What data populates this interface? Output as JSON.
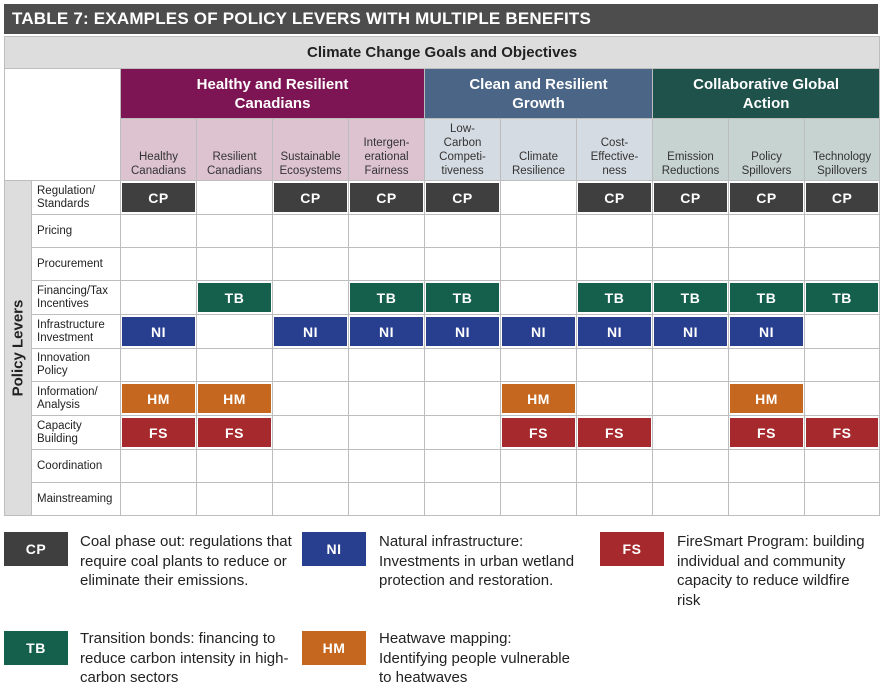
{
  "title": "TABLE 7: EXAMPLES OF POLICY LEVERS WITH MULTIPLE BENEFITS",
  "goals_header": "Climate Change Goals and Objectives",
  "levers_header": "Policy Levers",
  "colors": {
    "healthy": "#7d1554",
    "clean": "#4a6585",
    "collab": "#1f524b",
    "healthy_sub": "#dcc3cf",
    "clean_sub": "#d5dbe2",
    "collab_sub": "#c7d3d0",
    "CP": "#3f3f3f",
    "TB": "#15604c",
    "NI": "#283f8f",
    "HM": "#c5671f",
    "FS": "#a62a2d"
  },
  "groups": [
    {
      "key": "healthy",
      "label": "Healthy and Resilient Canadians",
      "span": 4
    },
    {
      "key": "clean",
      "label": "Clean and Resilient Growth",
      "span": 3
    },
    {
      "key": "collab",
      "label": "Collaborative Global Action",
      "span": 3
    }
  ],
  "columns": [
    {
      "group": "healthy",
      "label": "Healthy\nCanadians"
    },
    {
      "group": "healthy",
      "label": "Resilient\nCanadians"
    },
    {
      "group": "healthy",
      "label": "Sustainable\nEcosystems"
    },
    {
      "group": "healthy",
      "label": "Intergen-\nerational\nFairness"
    },
    {
      "group": "clean",
      "label": "Low-\nCarbon\nCompeti-\ntiveness"
    },
    {
      "group": "clean",
      "label": "Climate\nResilience"
    },
    {
      "group": "clean",
      "label": "Cost-\nEffective-\nness"
    },
    {
      "group": "collab",
      "label": "Emission\nReductions"
    },
    {
      "group": "collab",
      "label": "Policy\nSpillovers"
    },
    {
      "group": "collab",
      "label": "Technology\nSpillovers"
    }
  ],
  "rows": [
    {
      "label": "Regulation/\nStandards",
      "cells": [
        "CP",
        "",
        "CP",
        "CP",
        "CP",
        "",
        "CP",
        "CP",
        "CP",
        "CP"
      ]
    },
    {
      "label": "Pricing",
      "cells": [
        "",
        "",
        "",
        "",
        "",
        "",
        "",
        "",
        "",
        ""
      ]
    },
    {
      "label": "Procurement",
      "cells": [
        "",
        "",
        "",
        "",
        "",
        "",
        "",
        "",
        "",
        ""
      ]
    },
    {
      "label": "Financing/Tax\nIncentives",
      "cells": [
        "",
        "TB",
        "",
        "TB",
        "TB",
        "",
        "TB",
        "TB",
        "TB",
        "TB"
      ]
    },
    {
      "label": "Infrastructure\nInvestment",
      "cells": [
        "NI",
        "",
        "NI",
        "NI",
        "NI",
        "NI",
        "NI",
        "NI",
        "NI",
        ""
      ]
    },
    {
      "label": "Innovation\nPolicy",
      "cells": [
        "",
        "",
        "",
        "",
        "",
        "",
        "",
        "",
        "",
        ""
      ]
    },
    {
      "label": "Information/\nAnalysis",
      "cells": [
        "HM",
        "HM",
        "",
        "",
        "",
        "HM",
        "",
        "",
        "HM",
        ""
      ]
    },
    {
      "label": "Capacity\nBuilding",
      "cells": [
        "FS",
        "FS",
        "",
        "",
        "",
        "FS",
        "FS",
        "",
        "FS",
        "FS"
      ]
    },
    {
      "label": "Coordination",
      "cells": [
        "",
        "",
        "",
        "",
        "",
        "",
        "",
        "",
        "",
        ""
      ]
    },
    {
      "label": "Mainstreaming",
      "cells": [
        "",
        "",
        "",
        "",
        "",
        "",
        "",
        "",
        "",
        ""
      ]
    }
  ],
  "legend": [
    {
      "code": "CP",
      "text": "Coal phase out: regulations that require coal plants to reduce or eliminate their emissions."
    },
    {
      "code": "NI",
      "text": "Natural infrastructure: Investments in urban wetland protection and restoration."
    },
    {
      "code": "FS",
      "text": "FireSmart Program: building individual and community capacity to reduce wildfire risk"
    },
    {
      "code": "TB",
      "text": "Transition bonds: financing to reduce carbon intensity in high-carbon sectors"
    },
    {
      "code": "HM",
      "text": "Heatwave mapping: Identifying people vulnerable to heatwaves"
    }
  ]
}
